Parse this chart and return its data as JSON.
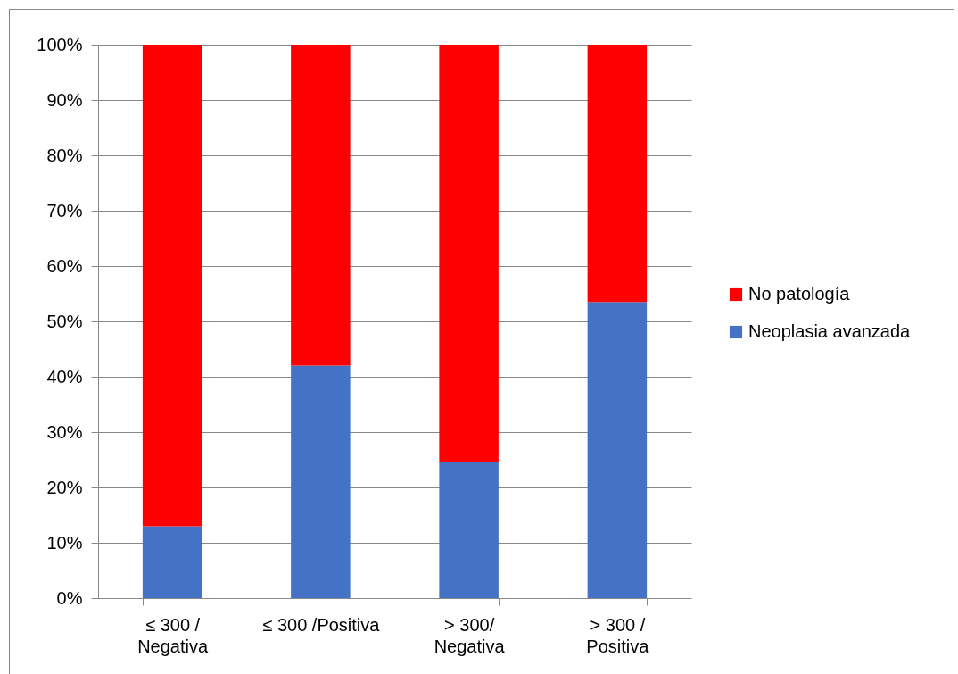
{
  "chart_data": {
    "type": "bar",
    "stacked": true,
    "categories": [
      "≤  300 /\nNegativa",
      "≤  300 /Positiva",
      "> 300/\nNegativa",
      "> 300 /\nPositiva"
    ],
    "series": [
      {
        "name": "Neoplasia avanzada",
        "color": "#4472c4",
        "values": [
          13,
          42,
          24.5,
          53.5
        ]
      },
      {
        "name": "No patología",
        "color": "#ff0000",
        "values": [
          87,
          58,
          75.5,
          46.5
        ]
      }
    ],
    "ylim": [
      0,
      100
    ],
    "yticks": [
      {
        "value": 0,
        "label": "0%"
      },
      {
        "value": 10,
        "label": "10%"
      },
      {
        "value": 20,
        "label": "20%"
      },
      {
        "value": 30,
        "label": "30%"
      },
      {
        "value": 40,
        "label": "40%"
      },
      {
        "value": 50,
        "label": "50%"
      },
      {
        "value": 60,
        "label": "60%"
      },
      {
        "value": 70,
        "label": "70%"
      },
      {
        "value": 80,
        "label": "80%"
      },
      {
        "value": 90,
        "label": "90%"
      },
      {
        "value": 100,
        "label": "100%"
      }
    ],
    "grid": "y",
    "legend": "right"
  }
}
